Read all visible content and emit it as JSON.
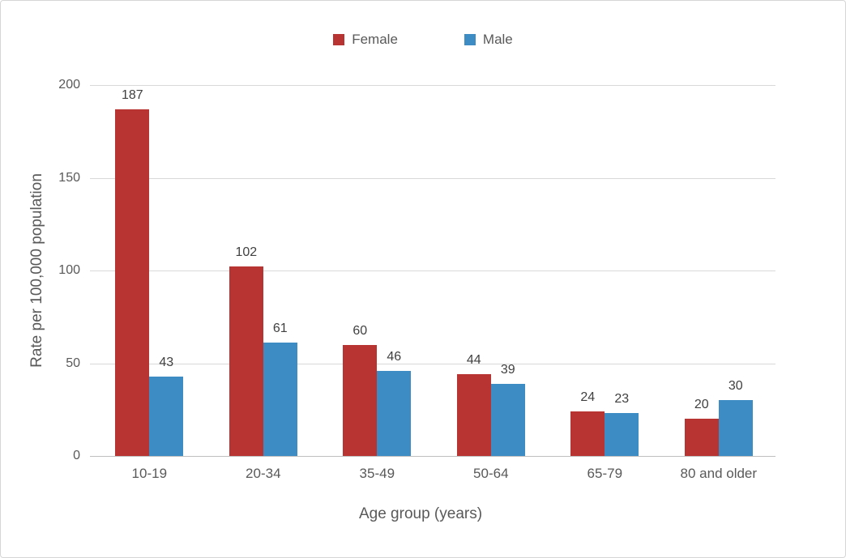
{
  "chart_data": {
    "type": "bar",
    "title": "",
    "xlabel": "Age group (years)",
    "ylabel": "Rate per 100,000 population",
    "categories": [
      "10-19",
      "20-34",
      "35-49",
      "50-64",
      "65-79",
      "80 and older"
    ],
    "series": [
      {
        "name": "Female",
        "color": "#B83432",
        "values": [
          187,
          102,
          60,
          44,
          24,
          20
        ]
      },
      {
        "name": "Male",
        "color": "#3D8DC4",
        "values": [
          43,
          61,
          46,
          39,
          23,
          30
        ]
      }
    ],
    "ylim": [
      0,
      200
    ],
    "yticks": [
      0,
      50,
      100,
      150,
      200
    ],
    "grid": "horizontal",
    "legend_position": "top-center",
    "data_labels": true
  },
  "colors": {
    "gridline": "#D9D9D9",
    "axis_line": "#BFBFBF",
    "axis_text": "#595959",
    "data_label_text": "#404040",
    "frame_border": "#D6D6D6",
    "background": "#FFFFFF"
  }
}
